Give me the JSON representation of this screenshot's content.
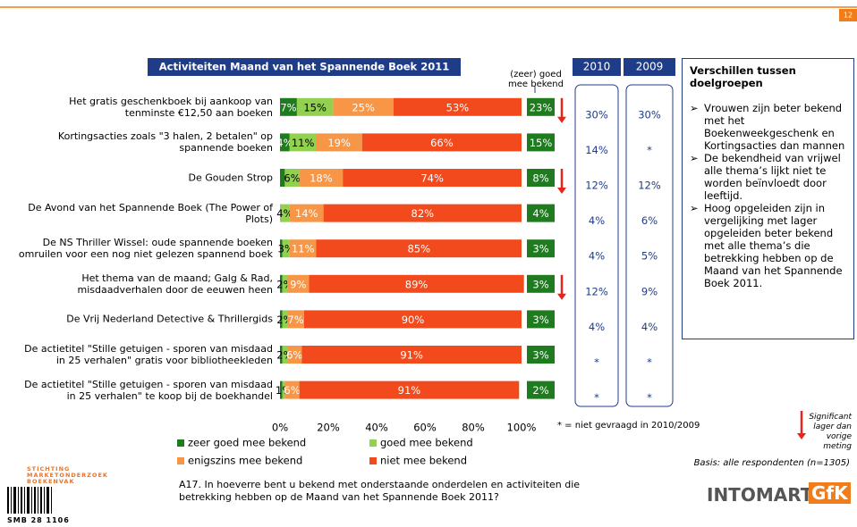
{
  "header": {
    "page_number": "12"
  },
  "chart_data": {
    "type": "bar",
    "orientation": "horizontal",
    "title": "Activiteiten Maand van het Spannende Boek 2011",
    "categories": [
      "Het gratis geschenkboek bij aankoop van tenminste €12,50 aan boeken",
      "Kortingsacties zoals \"3 halen, 2 betalen\" op spannende boeken",
      "De Gouden Strop",
      "De Avond van het Spannende Boek (The Power of Plots)",
      "De NS Thriller Wissel: oude spannende boeken omruilen voor een nog niet gelezen spannend boek",
      "Het thema van de maand; Galg & Rad, misdaadverhalen door de eeuwen heen",
      "De Vrij Nederland Detective & Thrillergids",
      "De actietitel \"Stille getuigen - sporen van misdaad in 25 verhalen\" gratis voor bibliotheekleden",
      "De actietitel \"Stille getuigen - sporen van misdaad in 25 verhalen\" te koop bij de boekhandel"
    ],
    "series": [
      {
        "name": "zeer goed mee bekend",
        "color": "#1e7b1e",
        "values": [
          7,
          4,
          2,
          0,
          1,
          1,
          1,
          1,
          1
        ],
        "value_labels": [
          "7%",
          "4%",
          null,
          null,
          null,
          null,
          null,
          null,
          null
        ]
      },
      {
        "name": "goed mee bekend",
        "color": "#92d050",
        "values": [
          15,
          11,
          6,
          4,
          3,
          2,
          2,
          2,
          1
        ],
        "value_labels": [
          "15%",
          "11%",
          "6%",
          "4%",
          "3%",
          "2%",
          "2%",
          "2%",
          "1%"
        ]
      },
      {
        "name": "enigszins mee bekend",
        "color": "#f79646",
        "values": [
          25,
          19,
          18,
          14,
          11,
          9,
          7,
          6,
          6
        ],
        "value_labels": [
          "25%",
          "19%",
          "18%",
          "14%",
          "11%",
          "9%",
          "7%",
          "6%",
          "6%"
        ]
      },
      {
        "name": "niet mee bekend",
        "color": "#f24a1c",
        "values": [
          53,
          66,
          74,
          82,
          85,
          89,
          90,
          91,
          91
        ],
        "value_labels": [
          "53%",
          "66%",
          "74%",
          "82%",
          "85%",
          "89%",
          "90%",
          "91%",
          "91%"
        ]
      }
    ],
    "xlim": [
      0,
      100
    ],
    "xticks": [
      {
        "value": 0,
        "label": "0%"
      },
      {
        "value": 20,
        "label": "20%"
      },
      {
        "value": 40,
        "label": "40%"
      },
      {
        "value": 60,
        "label": "60%"
      },
      {
        "value": 80,
        "label": "80%"
      },
      {
        "value": 100,
        "label": "100%"
      }
    ]
  },
  "known_column": {
    "header": "(zeer) goed mee bekend",
    "values": [
      "23%",
      "15%",
      "8%",
      "4%",
      "3%",
      "3%",
      "3%",
      "3%",
      "2%"
    ],
    "significant": [
      true,
      false,
      true,
      false,
      false,
      true,
      false,
      false,
      false
    ]
  },
  "year_columns": [
    {
      "header": "2010",
      "values": [
        "30%",
        "14%",
        "12%",
        "4%",
        "4%",
        "12%",
        "4%",
        "*",
        "*"
      ]
    },
    {
      "header": "2009",
      "values": [
        "30%",
        "*",
        "12%",
        "6%",
        "5%",
        "9%",
        "4%",
        "*",
        "*"
      ]
    }
  ],
  "footnote": "* = niet gevraagd in 2010/2009",
  "significance_note": "Significant lager dan vorige meting",
  "basis": "Basis: alle respondenten (n=1305)",
  "question": "A17. In hoeverre bent u bekend met onderstaande onderdelen en activiteiten die betrekking hebben op de Maand van het Spannende Boek 2011?",
  "differences": {
    "title": "Verschillen tussen doelgroepen",
    "bullets": [
      "Vrouwen zijn beter bekend met het Boekenweekgeschenk en Kortingsacties dan mannen",
      "De bekendheid van vrijwel alle thema’s lijkt niet te worden beïnvloedt door leeftijd.",
      "Hoog opgeleiden zijn in vergelijking met lager opgeleiden beter bekend met alle thema’s die betrekking hebben op de Maand van het Spannende Boek 2011."
    ]
  },
  "logos": {
    "left": "STICHTING MARKETONDERZOEK BOEKENVAK",
    "left_code": "SMB 28 1106",
    "right_main": "INTOMART",
    "right_box": "GfK"
  }
}
